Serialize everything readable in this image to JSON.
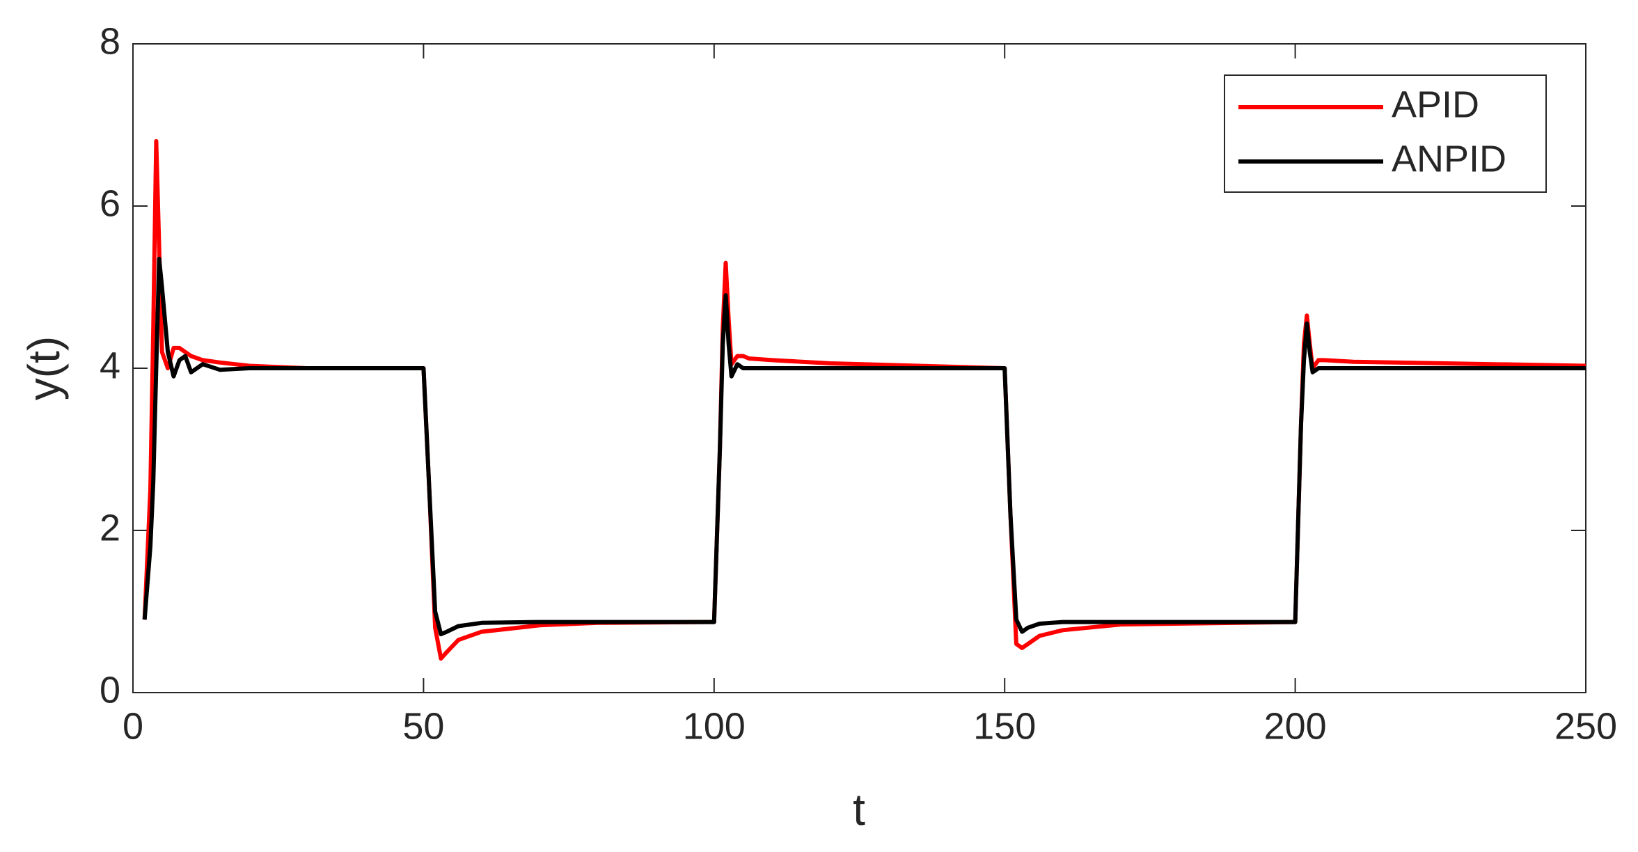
{
  "chart_data": {
    "type": "line",
    "x_label": "t",
    "y_label": "y(t)",
    "xlim": [
      0,
      250
    ],
    "ylim": [
      0,
      8
    ],
    "xticks": [
      0,
      50,
      100,
      150,
      200,
      250
    ],
    "yticks": [
      0,
      2,
      4,
      6,
      8
    ],
    "legend": "top-right",
    "x": [
      2,
      3,
      3.5,
      4,
      4.5,
      5,
      6,
      7,
      8,
      9,
      10,
      12,
      15,
      20,
      30,
      50,
      51,
      52,
      53,
      54,
      56,
      60,
      70,
      80,
      100,
      101,
      101.5,
      102,
      102.5,
      103,
      104,
      105,
      106,
      110,
      120,
      150,
      151,
      152,
      153,
      154,
      156,
      160,
      170,
      200,
      201,
      201.5,
      202,
      202.5,
      203,
      204,
      205,
      210,
      250
    ],
    "series": [
      {
        "name": "APID",
        "color": "#ff0000",
        "values": [
          0.9,
          2.5,
          4.5,
          6.8,
          5.5,
          4.2,
          4.0,
          4.25,
          4.25,
          4.2,
          4.15,
          4.1,
          4.07,
          4.03,
          4.0,
          4.0,
          2.5,
          0.8,
          0.42,
          0.5,
          0.65,
          0.75,
          0.83,
          0.86,
          0.87,
          3.0,
          4.5,
          5.3,
          4.6,
          4.05,
          4.15,
          4.15,
          4.12,
          4.1,
          4.06,
          4.0,
          2.2,
          0.6,
          0.55,
          0.6,
          0.7,
          0.77,
          0.84,
          0.87,
          3.3,
          4.3,
          4.65,
          4.3,
          4.0,
          4.1,
          4.1,
          4.08,
          4.03
        ]
      },
      {
        "name": "ANPID",
        "color": "#000000",
        "values": [
          0.9,
          1.8,
          2.6,
          4.0,
          5.35,
          5.0,
          4.2,
          3.9,
          4.1,
          4.15,
          3.95,
          4.05,
          3.98,
          4.0,
          4.0,
          4.0,
          2.5,
          1.0,
          0.72,
          0.75,
          0.82,
          0.86,
          0.87,
          0.87,
          0.87,
          3.0,
          4.3,
          4.9,
          4.3,
          3.9,
          4.05,
          4.0,
          4.0,
          4.0,
          4.0,
          4.0,
          2.2,
          0.9,
          0.75,
          0.8,
          0.85,
          0.87,
          0.87,
          0.87,
          3.3,
          4.1,
          4.55,
          4.2,
          3.95,
          4.0,
          4.0,
          4.0,
          4.0
        ]
      }
    ]
  }
}
